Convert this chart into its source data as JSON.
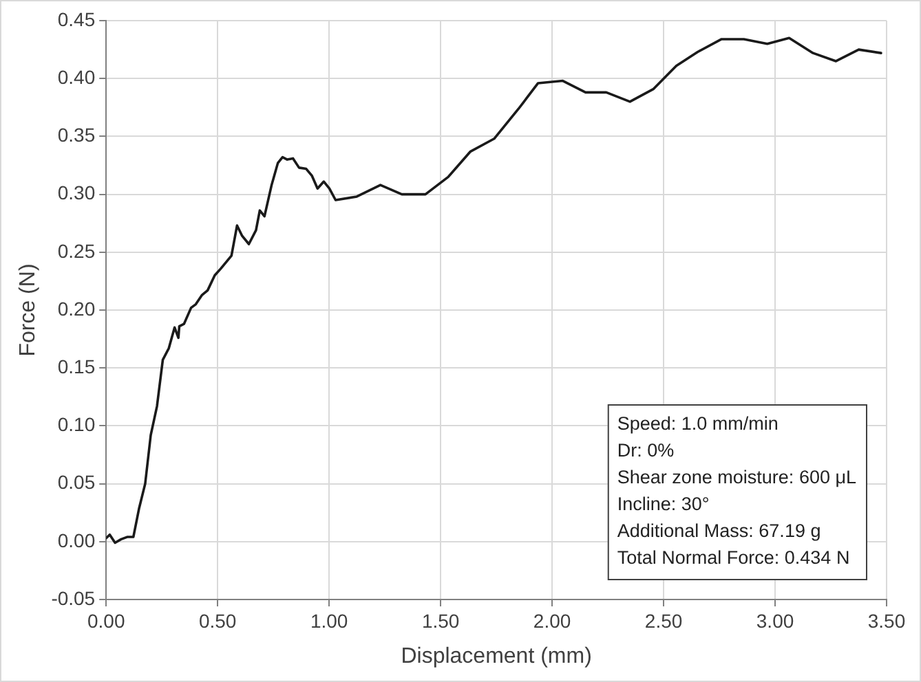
{
  "chart_data": {
    "type": "line",
    "xlabel": "Displacement (mm)",
    "ylabel": "Force (N)",
    "xlim": [
      0,
      3.5
    ],
    "xticks": [
      {
        "value": 0,
        "label": "0.00"
      },
      {
        "value": 0.5,
        "label": "0.50"
      },
      {
        "value": 1,
        "label": "1.00"
      },
      {
        "value": 1.5,
        "label": "1.50"
      },
      {
        "value": 2,
        "label": "2.00"
      },
      {
        "value": 2.5,
        "label": "2.50"
      },
      {
        "value": 3,
        "label": "3.00"
      },
      {
        "value": 3.5,
        "label": "3.50"
      }
    ],
    "ylim": [
      -0.05,
      0.45
    ],
    "yticks": [
      {
        "value": -0.05,
        "label": "-0.05"
      },
      {
        "value": 0,
        "label": "0.00"
      },
      {
        "value": 0.05,
        "label": "0.05"
      },
      {
        "value": 0.1,
        "label": "0.10"
      },
      {
        "value": 0.15,
        "label": "0.15"
      },
      {
        "value": 0.2,
        "label": "0.20"
      },
      {
        "value": 0.25,
        "label": "0.25"
      },
      {
        "value": 0.3,
        "label": "0.30"
      },
      {
        "value": 0.35,
        "label": "0.35"
      },
      {
        "value": 0.4,
        "label": "0.40"
      },
      {
        "value": 0.45,
        "label": "0.45"
      }
    ],
    "grid": true,
    "marker": "none",
    "line_style": "solid",
    "series": [
      {
        "color": "#1a1a1a",
        "x": [
          0,
          0.016,
          0.04,
          0.067,
          0.094,
          0.122,
          0.148,
          0.175,
          0.2,
          0.228,
          0.254,
          0.281,
          0.307,
          0.324,
          0.328,
          0.349,
          0.381,
          0.402,
          0.43,
          0.455,
          0.487,
          0.515,
          0.562,
          0.587,
          0.61,
          0.64,
          0.672,
          0.689,
          0.71,
          0.742,
          0.77,
          0.791,
          0.812,
          0.838,
          0.865,
          0.897,
          0.923,
          0.948,
          0.976,
          1.001,
          1.029,
          1.124,
          1.23,
          1.326,
          1.432,
          1.534,
          1.634,
          1.74,
          1.85,
          1.937,
          2.048,
          2.15,
          2.243,
          2.349,
          2.455,
          2.557,
          2.653,
          2.76,
          2.86,
          2.965,
          3.063,
          3.17,
          3.273,
          3.375,
          3.475
        ],
        "values": [
          0.003,
          0.006,
          -0.001,
          0.002,
          0.004,
          0.004,
          0.029,
          0.05,
          0.092,
          0.117,
          0.157,
          0.167,
          0.185,
          0.176,
          0.186,
          0.188,
          0.202,
          0.205,
          0.213,
          0.217,
          0.23,
          0.236,
          0.247,
          0.273,
          0.264,
          0.257,
          0.269,
          0.286,
          0.281,
          0.308,
          0.327,
          0.332,
          0.33,
          0.331,
          0.323,
          0.322,
          0.316,
          0.305,
          0.311,
          0.305,
          0.295,
          0.298,
          0.308,
          0.3,
          0.3,
          0.315,
          0.337,
          0.348,
          0.374,
          0.396,
          0.398,
          0.388,
          0.388,
          0.38,
          0.391,
          0.411,
          0.423,
          0.434,
          0.434,
          0.43,
          0.435,
          0.422,
          0.415,
          0.425,
          0.422
        ]
      }
    ],
    "annotations": [
      "Speed: 1.0 mm/min",
      "Dr: 0%",
      "Shear zone moisture: 600 μL",
      "Incline: 30°",
      "Additional Mass: 67.19 g",
      "Total Normal Force: 0.434 N"
    ]
  }
}
